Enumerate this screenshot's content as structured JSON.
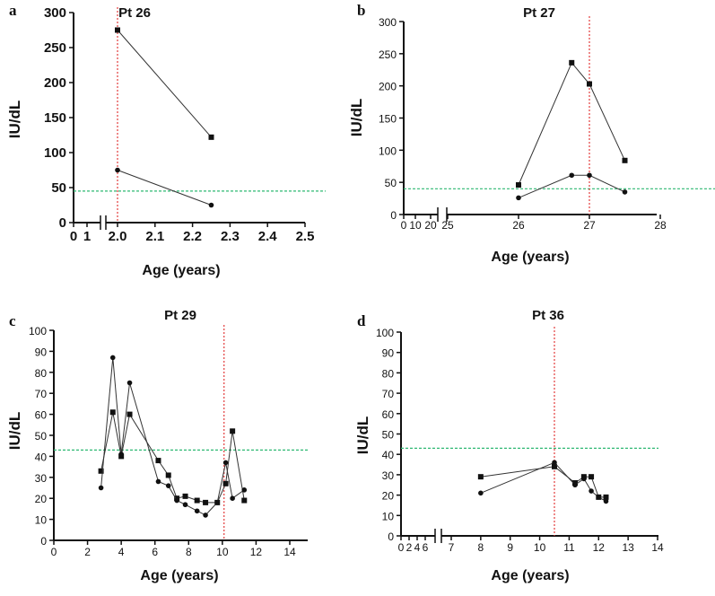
{
  "chart_data": [
    {
      "panel": "a",
      "type": "line",
      "title": "Pt 26",
      "xlabel": "Age (years)",
      "ylabel": "IU/dL",
      "ylim": [
        0,
        300
      ],
      "yticks": [
        0,
        50,
        100,
        150,
        200,
        250,
        300
      ],
      "xticks_pre": [
        0,
        1
      ],
      "xticks_main": [
        "2.0",
        "2.1",
        "2.2",
        "2.3",
        "2.4",
        "2.5"
      ],
      "threshold": 45,
      "event_x": 2.0,
      "series": [
        {
          "name": "squares",
          "marker": "square",
          "x": [
            2.0,
            2.25
          ],
          "y": [
            275,
            122
          ]
        },
        {
          "name": "circles",
          "marker": "circle",
          "x": [
            2.0,
            2.25
          ],
          "y": [
            75,
            25
          ]
        }
      ]
    },
    {
      "panel": "b",
      "type": "line",
      "title": "Pt 27",
      "xlabel": "Age (years)",
      "ylabel": "IU/dL",
      "ylim": [
        0,
        300
      ],
      "yticks": [
        0,
        50,
        100,
        150,
        200,
        250,
        300
      ],
      "xticks_pre": [
        0,
        10,
        20
      ],
      "xticks_main": [
        25,
        26,
        27,
        28
      ],
      "threshold": 40,
      "event_x": 27.0,
      "series": [
        {
          "name": "squares",
          "marker": "square",
          "x": [
            26.0,
            26.75,
            27.0,
            27.5
          ],
          "y": [
            46,
            236,
            203,
            84
          ]
        },
        {
          "name": "circles",
          "marker": "circle",
          "x": [
            26.0,
            26.75,
            27.0,
            27.5
          ],
          "y": [
            26,
            61,
            61,
            35
          ]
        }
      ]
    },
    {
      "panel": "c",
      "type": "line",
      "title": "Pt 29",
      "xlabel": "Age (years)",
      "ylabel": "IU/dL",
      "ylim": [
        0,
        100
      ],
      "yticks": [
        0,
        10,
        20,
        30,
        40,
        50,
        60,
        70,
        80,
        90,
        100
      ],
      "xticks_main": [
        0,
        2,
        4,
        6,
        8,
        10,
        12,
        14
      ],
      "threshold": 43,
      "event_x": 10.1,
      "series": [
        {
          "name": "squares",
          "marker": "square",
          "x": [
            2.8,
            3.5,
            4.0,
            4.5,
            6.2,
            6.8,
            7.3,
            7.8,
            8.5,
            9.0,
            9.7,
            10.2,
            10.6,
            11.3
          ],
          "y": [
            33,
            61,
            40,
            60,
            38,
            31,
            20,
            21,
            19,
            18,
            18,
            27,
            52,
            19
          ]
        },
        {
          "name": "circles",
          "marker": "circle",
          "x": [
            2.8,
            3.5,
            4.0,
            4.5,
            6.2,
            6.8,
            7.3,
            7.8,
            8.5,
            9.0,
            9.7,
            10.2,
            10.6,
            11.3
          ],
          "y": [
            25,
            87,
            41,
            75,
            28,
            26,
            19,
            17,
            14,
            12,
            18,
            37,
            20,
            24
          ]
        }
      ]
    },
    {
      "panel": "d",
      "type": "line",
      "title": "Pt 36",
      "xlabel": "Age (years)",
      "ylabel": "IU/dL",
      "ylim": [
        0,
        100
      ],
      "yticks": [
        0,
        10,
        20,
        30,
        40,
        50,
        60,
        70,
        80,
        90,
        100
      ],
      "xticks_pre": [
        0,
        2,
        4,
        6
      ],
      "xticks_main": [
        7,
        8,
        9,
        10,
        11,
        12,
        13,
        14
      ],
      "threshold": 43,
      "event_x": 10.5,
      "series": [
        {
          "name": "squares",
          "marker": "square",
          "x": [
            8.0,
            10.5,
            11.2,
            11.5,
            11.75,
            12.0,
            12.25
          ],
          "y": [
            29,
            34,
            26,
            29,
            29,
            19,
            19
          ]
        },
        {
          "name": "circles",
          "marker": "circle",
          "x": [
            8.0,
            10.5,
            11.2,
            11.5,
            11.75,
            12.0,
            12.25
          ],
          "y": [
            21,
            36,
            25,
            28,
            22,
            19,
            17
          ]
        }
      ]
    }
  ]
}
